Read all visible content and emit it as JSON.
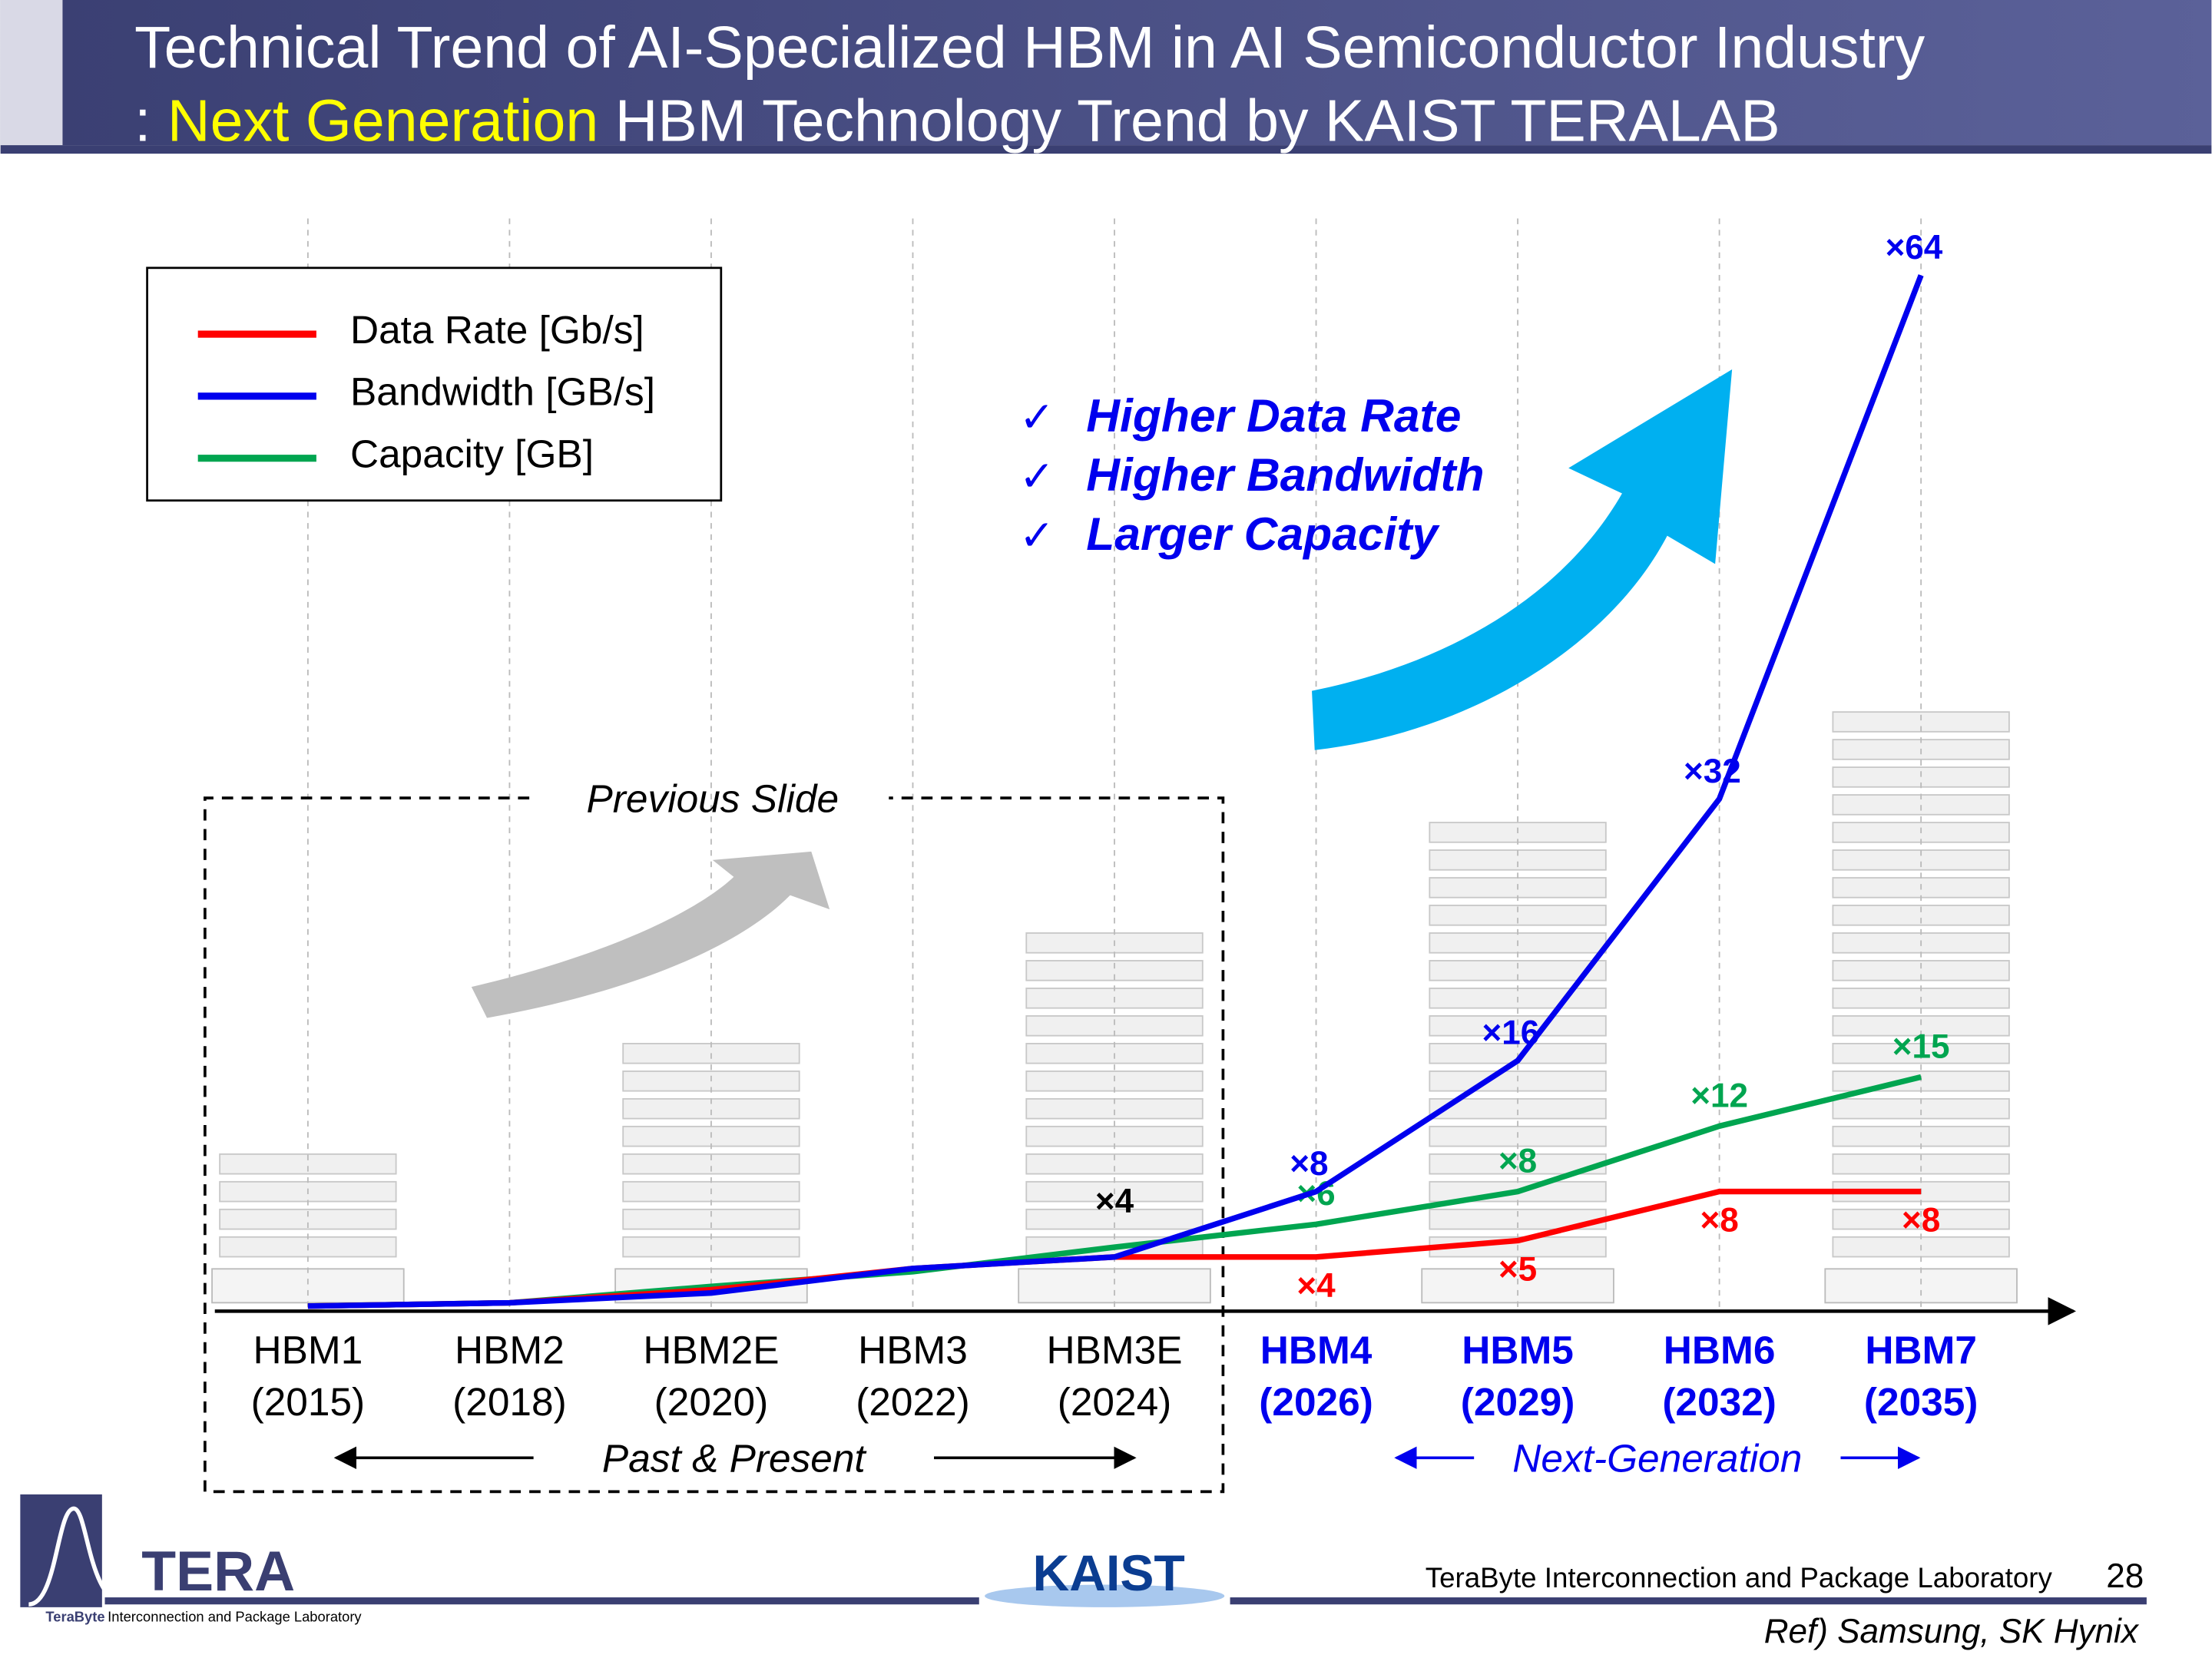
{
  "header": {
    "title_line1": "Technical Trend of AI-Specialized HBM in AI Semiconductor Industry",
    "title_prefix": ": ",
    "title_highlight": "Next Generation",
    "title_rest": " HBM Technology Trend by KAIST TERALAB"
  },
  "chart_data": {
    "type": "line",
    "categories": [
      "HBM1",
      "HBM2",
      "HBM2E",
      "HBM3",
      "HBM3E",
      "HBM4",
      "HBM5",
      "HBM6",
      "HBM7"
    ],
    "years": [
      "(2015)",
      "(2018)",
      "(2020)",
      "(2022)",
      "(2024)",
      "(2026)",
      "(2029)",
      "(2032)",
      "(2035)"
    ],
    "series": [
      {
        "name": "Data Rate [Gb/s]",
        "color": "#ff0000",
        "values": [
          1,
          1.2,
          2,
          3.3,
          4,
          4,
          5,
          8,
          8
        ],
        "value_labels": [
          null,
          null,
          null,
          null,
          null,
          "×4",
          "×5",
          "×8",
          "×8"
        ]
      },
      {
        "name": "Bandwidth [GB/s]",
        "color": "#0000ee",
        "values": [
          1,
          1.2,
          1.8,
          3.3,
          4,
          8,
          16,
          32,
          64
        ],
        "value_labels": [
          null,
          null,
          null,
          null,
          null,
          "×8",
          "×16",
          "×32",
          "×64"
        ]
      },
      {
        "name": "Capacity [GB]",
        "color": "#00a550",
        "values": [
          1,
          1.2,
          2.2,
          3.1,
          4.6,
          6,
          8,
          12,
          15
        ],
        "value_labels": [
          null,
          null,
          null,
          null,
          null,
          "×6",
          "×8",
          "×12",
          "×15"
        ]
      }
    ],
    "ylim": [
      0,
      66
    ],
    "grid": true,
    "annotations": [
      "×4"
    ],
    "checklist": [
      "Higher Data Rate",
      "Higher Bandwidth",
      "Larger Capacity"
    ],
    "previous_slide": "Previous Slide",
    "past_present": "Past & Present",
    "next_generation": "Next-Generation"
  },
  "footer": {
    "logo": "TERA",
    "logo_small1": "TeraByte",
    "logo_small2": "Interconnection and Package Laboratory",
    "kaist": "KAIST",
    "lab": "TeraByte Interconnection and Package Laboratory",
    "page": "28",
    "ref": "Ref) Samsung, SK Hynix"
  }
}
